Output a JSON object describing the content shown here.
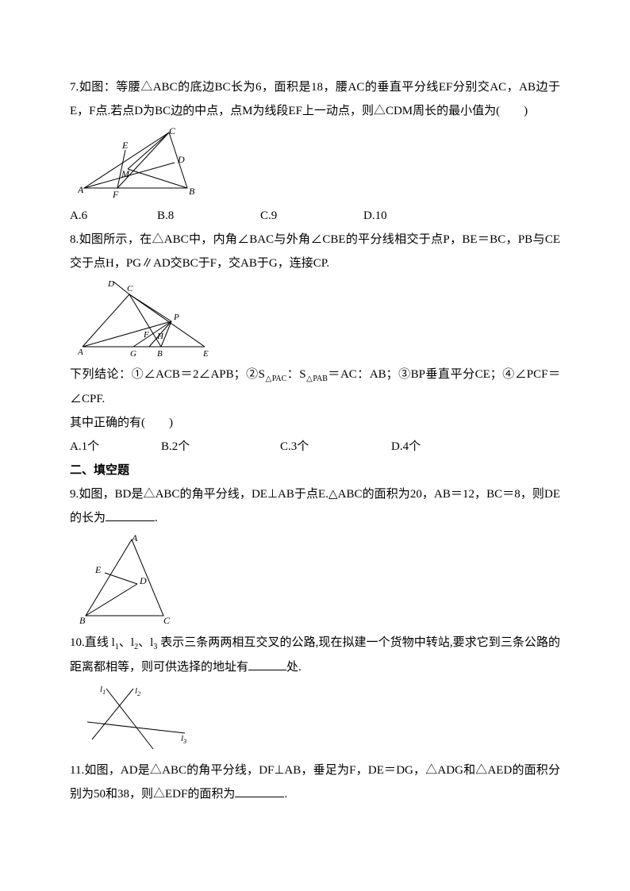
{
  "q7": {
    "text": "7.如图：等腰△ABC的底边BC长为6，面积是18，腰AC的垂直平分线EF分别交AC，AB边于E，F点.若点D为BC边的中点，点M为线段EF上一动点，则△CDM周长的最小值为(　　)",
    "options": {
      "a": "A.6",
      "b": "B.8",
      "c": "C.9",
      "d": "D.10"
    },
    "fig": {
      "stroke": "#000000",
      "bg": "#ffffff",
      "A": "A",
      "B": "B",
      "C": "C",
      "D": "D",
      "E": "E",
      "F": "F",
      "M": "M"
    }
  },
  "q8": {
    "text1": "8.如图所示，在△ABC中，内角∠BAC与外角∠CBE的平分线相交于点P，BE＝BC，PB与CE交于点H，PG∥AD交BC于F，交AB于G，连接CP.",
    "text2_a": "下列结论：①∠ACB＝2∠APB；②S",
    "text2_pac": "△PAC",
    "text2_b": "：S",
    "text2_pab": "△PAB",
    "text2_c": "＝AC：AB；③BP垂直平分CE；④∠PCF＝∠CPF.",
    "text3": "其中正确的有(　　)",
    "options": {
      "a": "A.1个",
      "b": "B.2个",
      "c": "C.3个",
      "d": "D.4个"
    },
    "fig": {
      "stroke": "#000000",
      "A": "A",
      "B": "B",
      "C": "C",
      "D": "D",
      "E": "E",
      "F": "F",
      "G": "G",
      "H": "H",
      "P": "P"
    }
  },
  "section2": "二、填空题",
  "q9": {
    "text_a": "9.如图，BD是△ABC的角平分线，DE⊥AB于点E.△ABC的面积为20，AB＝12，BC＝8，则DE的长为",
    "text_b": ".",
    "blank_w": 62,
    "fig": {
      "stroke": "#000000",
      "A": "A",
      "B": "B",
      "C": "C",
      "D": "D",
      "E": "E"
    }
  },
  "q10": {
    "text_a": "10.直线 l",
    "s1": "1",
    "text_b": "、l",
    "s2": "2",
    "text_c": "、l",
    "s3": "3",
    "text_d": " 表示三条两两相互交叉的公路,现在拟建一个货物中转站,要求它到三条公路的距离都相等，则可供选择的地址有",
    "text_e": "处.",
    "blank_w": 48,
    "fig": {
      "stroke": "#000000",
      "l1": "l",
      "l1s": "1",
      "l2": "l",
      "l2s": "2",
      "l3": "l",
      "l3s": "3"
    }
  },
  "q11": {
    "text_a": "11.如图，AD是△ABC的角平分线，DF⊥AB，垂足为F，DE＝DG，△ADG和△AED的面积分别为50和38，则△EDF的面积为",
    "text_b": ".",
    "blank_w": 62
  }
}
